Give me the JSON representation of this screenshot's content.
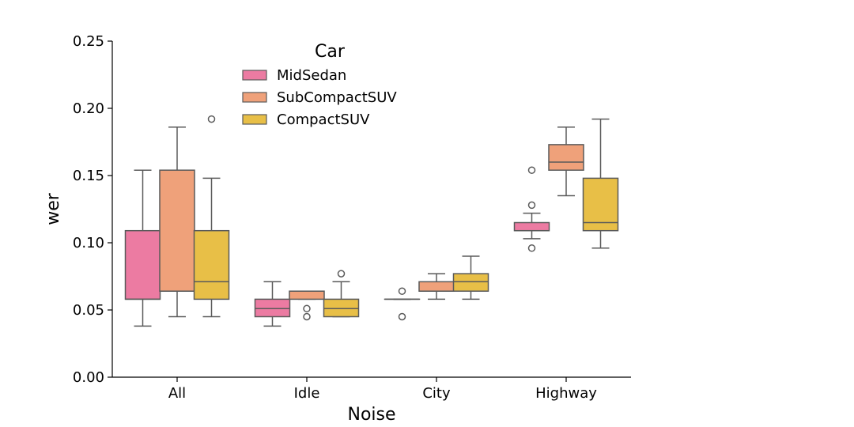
{
  "chart_data": {
    "type": "box",
    "xlabel": "Noise",
    "ylabel": "wer",
    "ylim": [
      0,
      0.25
    ],
    "yticks": [
      "0.00",
      "0.05",
      "0.10",
      "0.15",
      "0.20",
      "0.25"
    ],
    "categories": [
      "All",
      "Idle",
      "City",
      "Highway"
    ],
    "legend": {
      "title": "Car",
      "placement": "top-center"
    },
    "grid": false,
    "series": [
      {
        "name": "MidSedan",
        "color": "#EC7BA2",
        "boxes": [
          {
            "whislo": 0.038,
            "q1": 0.058,
            "med": 0.058,
            "q3": 0.109,
            "whishi": 0.154,
            "fliers": []
          },
          {
            "whislo": 0.038,
            "q1": 0.045,
            "med": 0.051,
            "q3": 0.058,
            "whishi": 0.071,
            "fliers": []
          },
          {
            "whislo": 0.058,
            "q1": 0.058,
            "med": 0.058,
            "q3": 0.058,
            "whishi": 0.058,
            "fliers": [
              0.064,
              0.045
            ]
          },
          {
            "whislo": 0.103,
            "q1": 0.109,
            "med": 0.109,
            "q3": 0.115,
            "whishi": 0.122,
            "fliers": [
              0.154,
              0.128,
              0.096
            ]
          }
        ]
      },
      {
        "name": "SubCompactSUV",
        "color": "#EFA17A",
        "boxes": [
          {
            "whislo": 0.045,
            "q1": 0.064,
            "med": 0.064,
            "q3": 0.154,
            "whishi": 0.186,
            "fliers": []
          },
          {
            "whislo": 0.058,
            "q1": 0.058,
            "med": 0.064,
            "q3": 0.064,
            "whishi": 0.064,
            "fliers": [
              0.051,
              0.045
            ]
          },
          {
            "whislo": 0.058,
            "q1": 0.064,
            "med": 0.064,
            "q3": 0.071,
            "whishi": 0.077,
            "fliers": []
          },
          {
            "whislo": 0.135,
            "q1": 0.154,
            "med": 0.16,
            "q3": 0.173,
            "whishi": 0.186,
            "fliers": []
          }
        ]
      },
      {
        "name": "CompactSUV",
        "color": "#E8BF47",
        "boxes": [
          {
            "whislo": 0.045,
            "q1": 0.058,
            "med": 0.071,
            "q3": 0.109,
            "whishi": 0.148,
            "fliers": [
              0.192
            ]
          },
          {
            "whislo": 0.045,
            "q1": 0.045,
            "med": 0.051,
            "q3": 0.058,
            "whishi": 0.071,
            "fliers": [
              0.077
            ]
          },
          {
            "whislo": 0.058,
            "q1": 0.064,
            "med": 0.071,
            "q3": 0.077,
            "whishi": 0.09,
            "fliers": []
          },
          {
            "whislo": 0.096,
            "q1": 0.109,
            "med": 0.115,
            "q3": 0.148,
            "whishi": 0.192,
            "fliers": []
          }
        ]
      }
    ]
  }
}
